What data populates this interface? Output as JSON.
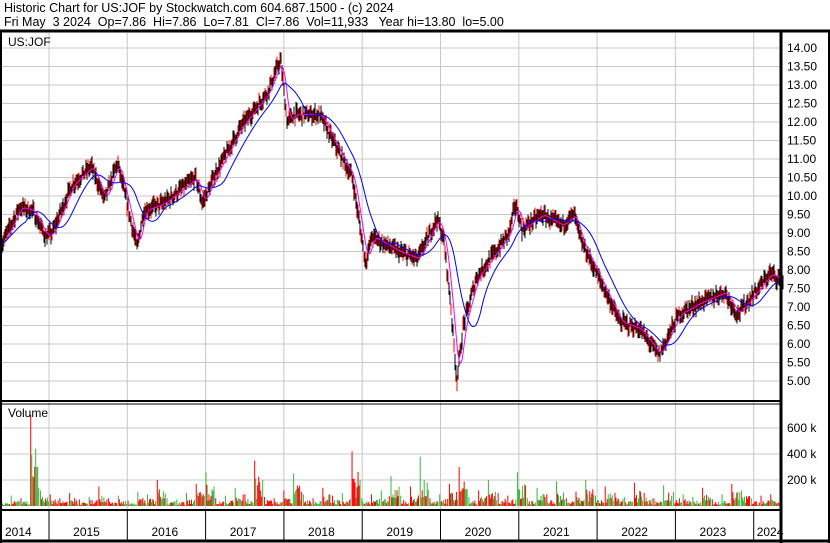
{
  "header": {
    "title": "Historic Chart for US:JOF by Stockwatch.com 604.687.1500 - (c) 2024",
    "quote_line": "Fri May  3 2024  Op=7.86  Hi=7.86  Lo=7.81  Cl=7.86  Vol=11,933   Year hi=13.80  lo=5.00"
  },
  "chart_data": [
    {
      "type": "line",
      "title": "US:JOF",
      "x_axis": {
        "tick_labels": [
          "2014",
          "2015",
          "2016",
          "2017",
          "2018",
          "2019",
          "2020",
          "2021",
          "2022",
          "2023",
          "2024"
        ]
      },
      "y_axis": {
        "position": "right",
        "ylim": [
          4.6,
          14.4
        ],
        "tick_labels": [
          "5.00",
          "5.50",
          "6.00",
          "6.50",
          "7.00",
          "7.50",
          "8.00",
          "8.50",
          "9.00",
          "9.50",
          "10.00",
          "10.50",
          "11.00",
          "11.50",
          "12.00",
          "12.50",
          "13.00",
          "13.50",
          "14.00"
        ]
      },
      "grid": true,
      "colors": {
        "price": "#000000",
        "up_bar": "#ff0000",
        "short_ma": "#ff00ff",
        "long_ma": "#0000ff",
        "grid": "#c8c8c8"
      },
      "price": {
        "dates": [
          "2014-05",
          "2014-08",
          "2014-10",
          "2014-12",
          "2015-01",
          "2015-04",
          "2015-07",
          "2015-09",
          "2015-11",
          "2016-02",
          "2016-03",
          "2016-06",
          "2016-11",
          "2016-12",
          "2017-02",
          "2017-06",
          "2017-10",
          "2017-12",
          "2018-01",
          "2018-02",
          "2018-06",
          "2018-08",
          "2018-11",
          "2019-01",
          "2019-02",
          "2019-06",
          "2019-09",
          "2019-12",
          "2020-01",
          "2020-02",
          "2020-03",
          "2020-04",
          "2020-06",
          "2020-09",
          "2020-11",
          "2020-12",
          "2021-01",
          "2021-04",
          "2021-07",
          "2021-09",
          "2021-10",
          "2022-01",
          "2022-04",
          "2022-07",
          "2022-10",
          "2023-01",
          "2023-04",
          "2023-08",
          "2023-10",
          "2024-03",
          "2024-05"
        ],
        "close": [
          8.6,
          9.7,
          9.6,
          8.9,
          9.0,
          10.3,
          10.8,
          9.9,
          10.9,
          8.6,
          9.6,
          9.8,
          10.5,
          9.8,
          10.6,
          11.9,
          12.8,
          13.7,
          12.0,
          12.2,
          12.2,
          11.5,
          10.5,
          8.2,
          8.9,
          8.5,
          8.3,
          9.4,
          8.8,
          7.2,
          5.0,
          6.5,
          7.8,
          8.5,
          9.0,
          9.8,
          9.1,
          9.5,
          9.2,
          9.5,
          8.8,
          7.7,
          6.6,
          6.4,
          5.7,
          6.8,
          7.1,
          7.4,
          6.8,
          7.9,
          7.7
        ]
      }
    },
    {
      "type": "bar",
      "title": "Volume",
      "y_axis": {
        "position": "right",
        "tick_labels": [
          "200 k",
          "400 k",
          "600 k"
        ],
        "ylim": [
          0,
          750
        ]
      },
      "colors": {
        "up": "#ff0000",
        "down": "#3cb43c"
      },
      "volume_k": [
        40,
        80,
        60,
        700,
        120,
        90,
        60,
        100,
        50,
        70,
        150,
        60,
        80,
        40,
        110,
        90,
        200,
        60,
        50,
        100,
        170,
        260,
        60,
        80,
        140,
        90,
        350,
        70,
        60,
        120,
        250,
        90,
        60,
        140,
        80,
        100,
        420,
        60,
        90,
        120,
        230,
        80,
        150,
        380,
        60,
        90,
        170,
        300,
        70,
        120,
        200,
        100,
        80,
        260,
        60,
        140,
        90,
        190,
        60,
        110,
        200,
        80,
        150,
        100,
        70,
        180,
        100,
        60,
        160,
        110,
        90,
        70,
        140,
        50,
        90,
        170,
        120,
        60,
        80,
        90
      ]
    }
  ]
}
